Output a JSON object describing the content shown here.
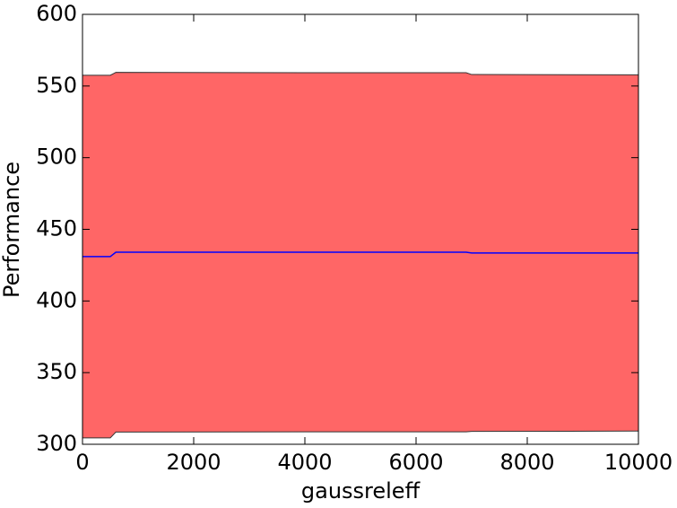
{
  "chart_data": {
    "type": "line",
    "x": [
      0,
      500,
      600,
      4000,
      6900,
      7000,
      10000
    ],
    "values": [
      431,
      431,
      434,
      434,
      434,
      433.5,
      433.5
    ],
    "color": "#0000ff",
    "band": {
      "color": "#ff6666",
      "edge_color": "#333333",
      "upper": [
        557.5,
        557.5,
        559.5,
        559.3,
        559.3,
        558,
        557.8
      ],
      "lower": [
        304.5,
        304.5,
        308.5,
        308.7,
        308.7,
        309,
        309.2
      ]
    },
    "xlabel": "gaussreleff",
    "ylabel": "Performance",
    "xlim": [
      0,
      10000
    ],
    "ylim": [
      300,
      600
    ],
    "xticks": [
      0,
      2000,
      4000,
      6000,
      8000,
      10000
    ],
    "yticks": [
      300,
      350,
      400,
      450,
      500,
      550,
      600
    ],
    "grid": false
  }
}
